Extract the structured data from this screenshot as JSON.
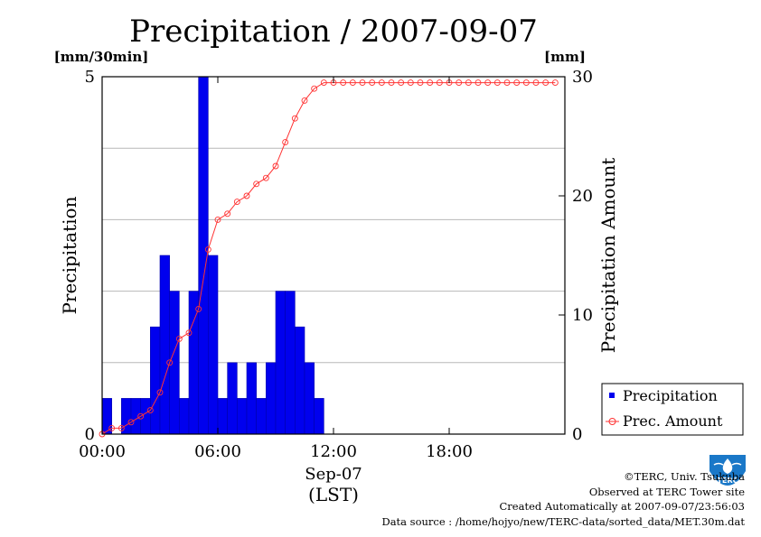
{
  "chart_data": {
    "title": "Precipitation / 2007-09-07",
    "left_unit": "[mm/30min]",
    "right_unit": "[mm]",
    "ylabel_left": "Precipitation",
    "ylabel_right": "Precipitation Amount",
    "xlabel_date": "Sep-07",
    "xlabel_tz": "(LST)",
    "x_tick_labels": [
      "00:00",
      "06:00",
      "12:00",
      "18:00"
    ],
    "x_tick_hours": [
      0,
      6,
      12,
      18
    ],
    "xlim_hours": [
      0,
      24
    ],
    "ylim_left": [
      0,
      5
    ],
    "ylim_right": [
      0,
      30
    ],
    "y_ticks_left": [
      0,
      5
    ],
    "y_ticks_right": [
      0,
      10,
      20,
      30
    ],
    "grid": "horizontal",
    "legend_position": "bottom-right",
    "series": [
      {
        "name": "Precipitation",
        "type": "bar",
        "axis": "left",
        "color": "#0000ee",
        "bin_start_hours": [
          0,
          0.5,
          1,
          1.5,
          2,
          2.5,
          3,
          3.5,
          4,
          4.5,
          5,
          5.5,
          6,
          6.5,
          7,
          7.5,
          8,
          8.5,
          9,
          9.5,
          10,
          10.5,
          11
        ],
        "values": [
          0.5,
          0,
          0.5,
          0.5,
          0.5,
          1.5,
          2.5,
          2,
          0.5,
          2,
          5,
          2.5,
          0.5,
          1,
          0.5,
          1,
          0.5,
          1,
          2,
          2,
          1.5,
          1,
          0.5
        ]
      },
      {
        "name": "Prec. Amount",
        "type": "line",
        "axis": "right",
        "color": "#ff3333",
        "x_hours": [
          0,
          0.5,
          1,
          1.5,
          2,
          2.5,
          3,
          3.5,
          4,
          4.5,
          5,
          5.5,
          6,
          6.5,
          7,
          7.5,
          8,
          8.5,
          9,
          9.5,
          10,
          10.5,
          11,
          11.5,
          12,
          12.5,
          13,
          13.5,
          14,
          14.5,
          15,
          15.5,
          16,
          16.5,
          17,
          17.5,
          18,
          18.5,
          19,
          19.5,
          20,
          20.5,
          21,
          21.5,
          22,
          22.5,
          23,
          23.5
        ],
        "values": [
          0,
          0.5,
          0.5,
          1,
          1.5,
          2,
          3.5,
          6,
          8,
          8.5,
          10.5,
          15.5,
          18,
          18.5,
          19.5,
          20,
          21,
          21.5,
          22.5,
          24.5,
          26.5,
          28,
          29,
          29.5,
          29.5,
          29.5,
          29.5,
          29.5,
          29.5,
          29.5,
          29.5,
          29.5,
          29.5,
          29.5,
          29.5,
          29.5,
          29.5,
          29.5,
          29.5,
          29.5,
          29.5,
          29.5,
          29.5,
          29.5,
          29.5,
          29.5,
          29.5,
          29.5
        ]
      }
    ]
  },
  "footer": {
    "copyright": "©TERC, Univ. Tsukuba",
    "observed": "Observed at TERC Tower site",
    "created": "Created Automatically at 2007-09-07/23:56:03",
    "source": "Data source : /home/hojyo/new/TERC-data/sorted_data/MET.30m.dat"
  },
  "logo": {
    "text": "TERC",
    "color": "#1a78c8"
  }
}
